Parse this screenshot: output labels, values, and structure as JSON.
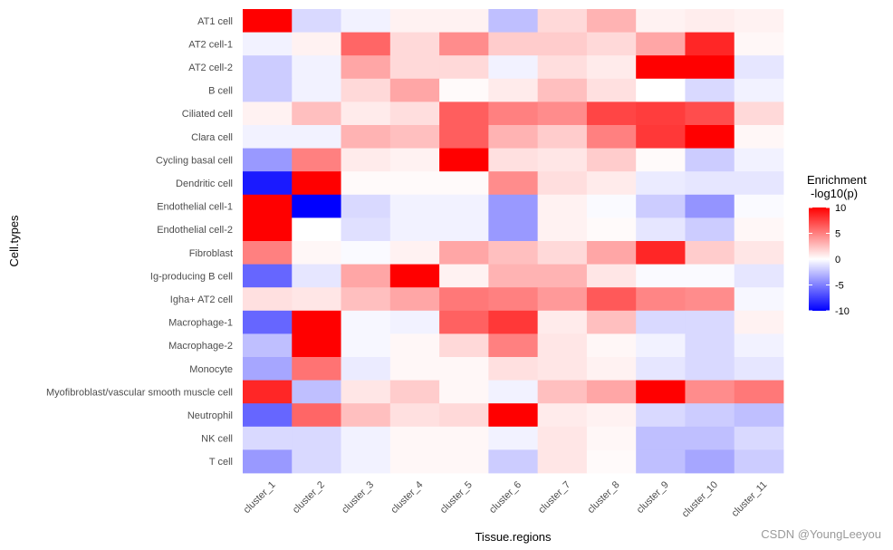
{
  "chart_data": {
    "type": "heatmap",
    "xlabel": "Tissue.regions",
    "ylabel": "Cell.types",
    "x_categories": [
      "cluster_1",
      "cluster_2",
      "cluster_3",
      "cluster_4",
      "cluster_5",
      "cluster_6",
      "cluster_7",
      "cluster_8",
      "cluster_9",
      "cluster_10",
      "cluster_11"
    ],
    "y_categories": [
      "AT1 cell",
      "AT2 cell-1",
      "AT2 cell-2",
      "B cell",
      "Ciliated cell",
      "Clara cell",
      "Cycling basal cell",
      "Dendritic cell",
      "Endothelial cell-1",
      "Endothelial cell-2",
      "Fibroblast",
      "Ig-producing B cell",
      "Igha+ AT2  cell",
      "Macrophage-1",
      "Macrophage-2",
      "Monocyte",
      "Myofibroblast/vascular smooth muscle cell",
      "Neutrophil",
      "NK cell",
      "T cell"
    ],
    "values": [
      [
        10,
        -1.5,
        -0.5,
        0.5,
        0.5,
        -2.5,
        1.5,
        3,
        0.5,
        0.7,
        0.5
      ],
      [
        -0.5,
        0.5,
        6,
        1.5,
        4.5,
        2,
        2,
        1.5,
        3.5,
        8.5,
        0.3
      ],
      [
        -2,
        -0.5,
        3.5,
        1.5,
        1.5,
        -0.5,
        1.3,
        0.8,
        10,
        10,
        -1
      ],
      [
        -2,
        -0.5,
        1.5,
        3.5,
        0.2,
        0.8,
        2.5,
        1.2,
        0,
        -1.5,
        -0.5
      ],
      [
        0.5,
        2.5,
        0.8,
        1.3,
        6.3,
        5,
        4.5,
        7.3,
        7.6,
        7,
        1.5
      ],
      [
        -0.5,
        -0.5,
        3,
        2.5,
        6.3,
        3,
        2,
        5,
        7.8,
        10,
        0.3
      ],
      [
        -4,
        5,
        0.8,
        0.5,
        10,
        1.2,
        1,
        2,
        0.2,
        -2,
        -0.5
      ],
      [
        -9,
        10,
        0.2,
        0.2,
        0.2,
        4.5,
        1.3,
        0.8,
        -0.8,
        -1,
        -1
      ],
      [
        10,
        -10,
        -1.5,
        -0.5,
        -0.5,
        -4,
        0.5,
        -0.2,
        -2,
        -4.2,
        -0.2
      ],
      [
        10,
        0,
        -1.2,
        -0.5,
        -0.5,
        -4,
        0.5,
        0.2,
        -1,
        -2,
        0.3
      ],
      [
        5,
        0.3,
        -0.2,
        0.5,
        3.5,
        2.5,
        1.5,
        3.5,
        8.5,
        2,
        1
      ],
      [
        -6,
        -1,
        3.5,
        10,
        0.5,
        3,
        3,
        1,
        -0.2,
        -0.2,
        -1
      ],
      [
        1.2,
        1,
        2.5,
        3.5,
        5.3,
        5,
        4,
        6.5,
        4.8,
        4.5,
        -0.3
      ],
      [
        -6,
        10,
        -0.3,
        -0.5,
        6.2,
        7.8,
        0.8,
        2.5,
        -1.5,
        -1.5,
        0.5
      ],
      [
        -2.5,
        10,
        -0.3,
        0.3,
        1.5,
        5,
        1,
        0.3,
        -0.5,
        -1.5,
        -0.5
      ],
      [
        -3.5,
        5.5,
        -0.8,
        0.3,
        0.3,
        1.2,
        1,
        0.5,
        -1,
        -1.5,
        -1
      ],
      [
        8.5,
        -2.5,
        1,
        2,
        0.3,
        -0.5,
        2.5,
        3.5,
        10,
        4.5,
        5.3
      ],
      [
        -6,
        6,
        2.5,
        1.2,
        1.5,
        10,
        0.8,
        0.5,
        -1.5,
        -2,
        -2.5
      ],
      [
        -1.5,
        -1.5,
        -0.5,
        0.3,
        0.3,
        -0.5,
        1,
        0.3,
        -2.5,
        -2.5,
        -1.5
      ],
      [
        -4,
        -1.5,
        -0.5,
        0.3,
        0.3,
        -2,
        1,
        0.2,
        -2.5,
        -3.5,
        -2
      ]
    ],
    "color_scale": {
      "low": "#0000ff",
      "mid": "#ffffff",
      "high": "#ff0000",
      "min": -10,
      "max": 10
    },
    "legend": {
      "title_line1": "Enrichment",
      "title_line2": "-log10(p)",
      "ticks": [
        10,
        5,
        0,
        -5,
        -10
      ],
      "tick_labels": [
        "10",
        "5",
        "0",
        "-5",
        "-10"
      ],
      "position": "right"
    },
    "panel_background": "#f7f7f7"
  },
  "watermark": "CSDN @YoungLeeyou"
}
